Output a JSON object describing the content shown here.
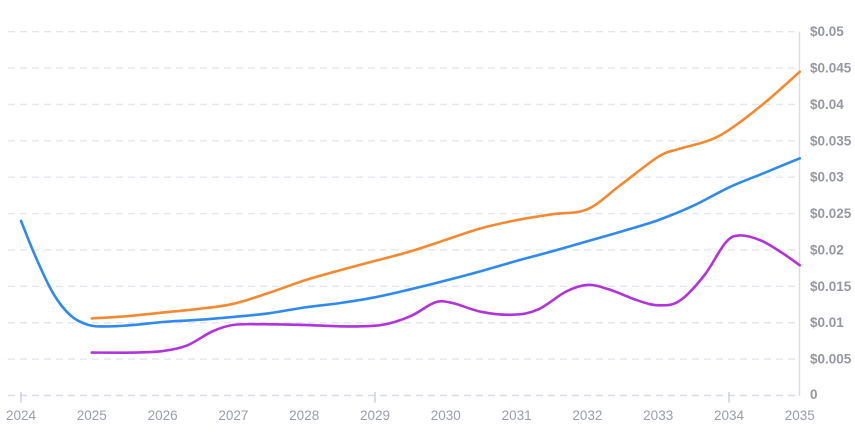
{
  "chart_data": {
    "type": "line",
    "title": "",
    "xlabel": "",
    "ylabel": "",
    "legend": "none",
    "grid": "horizontal-dashed",
    "xlim": [
      2024,
      2035
    ],
    "ylim": [
      0,
      0.05
    ],
    "x_tick_labels": [
      "2024",
      "2025",
      "2026",
      "2027",
      "2028",
      "2029",
      "2030",
      "2031",
      "2032",
      "2033",
      "2034",
      "2035"
    ],
    "x_tick_marks": [
      2024,
      2029,
      2034
    ],
    "y_ticks": [
      {
        "value": 0.05,
        "label": "$0.05"
      },
      {
        "value": 0.045,
        "label": "$0.045"
      },
      {
        "value": 0.04,
        "label": "$0.04"
      },
      {
        "value": 0.035,
        "label": "$0.035"
      },
      {
        "value": 0.03,
        "label": "$0.03"
      },
      {
        "value": 0.025,
        "label": "$0.025"
      },
      {
        "value": 0.02,
        "label": "$0.02"
      },
      {
        "value": 0.015,
        "label": "$0.015"
      },
      {
        "value": 0.01,
        "label": "$0.01"
      },
      {
        "value": 0.005,
        "label": "$0.005"
      },
      {
        "value": 0,
        "label": "0"
      }
    ],
    "series": [
      {
        "id": "blue",
        "color": "#2f8af0",
        "points": [
          [
            2024.0,
            0.024
          ],
          [
            2024.2,
            0.0192
          ],
          [
            2024.45,
            0.0141
          ],
          [
            2024.7,
            0.011
          ],
          [
            2024.95,
            0.0097
          ],
          [
            2025.2,
            0.0095
          ],
          [
            2025.6,
            0.0097
          ],
          [
            2026.0,
            0.0101
          ],
          [
            2026.5,
            0.0104
          ],
          [
            2027.0,
            0.0108
          ],
          [
            2027.5,
            0.0113
          ],
          [
            2028.0,
            0.0121
          ],
          [
            2028.5,
            0.0127
          ],
          [
            2029.0,
            0.0135
          ],
          [
            2029.5,
            0.0146
          ],
          [
            2030.0,
            0.0158
          ],
          [
            2030.5,
            0.0171
          ],
          [
            2031.0,
            0.0185
          ],
          [
            2031.5,
            0.0198
          ],
          [
            2032.0,
            0.0212
          ],
          [
            2032.5,
            0.0226
          ],
          [
            2033.0,
            0.0241
          ],
          [
            2033.5,
            0.0261
          ],
          [
            2034.0,
            0.0286
          ],
          [
            2034.5,
            0.0306
          ],
          [
            2035.0,
            0.0326
          ]
        ]
      },
      {
        "id": "orange",
        "color": "#f6892f",
        "points": [
          [
            2025.0,
            0.0106
          ],
          [
            2025.5,
            0.0109
          ],
          [
            2026.0,
            0.0114
          ],
          [
            2026.5,
            0.0119
          ],
          [
            2027.0,
            0.0126
          ],
          [
            2027.5,
            0.0141
          ],
          [
            2028.0,
            0.0158
          ],
          [
            2028.5,
            0.0172
          ],
          [
            2029.0,
            0.0185
          ],
          [
            2029.5,
            0.0198
          ],
          [
            2030.0,
            0.0214
          ],
          [
            2030.5,
            0.023
          ],
          [
            2031.0,
            0.0241
          ],
          [
            2031.5,
            0.0249
          ],
          [
            2032.0,
            0.0256
          ],
          [
            2032.45,
            0.0288
          ],
          [
            2033.0,
            0.0328
          ],
          [
            2033.3,
            0.0339
          ],
          [
            2033.7,
            0.035
          ],
          [
            2034.0,
            0.0365
          ],
          [
            2034.5,
            0.0402
          ],
          [
            2035.0,
            0.0445
          ]
        ]
      },
      {
        "id": "purple",
        "color": "#b133db",
        "points": [
          [
            2025.0,
            0.0059
          ],
          [
            2025.6,
            0.0059
          ],
          [
            2026.0,
            0.0061
          ],
          [
            2026.35,
            0.0069
          ],
          [
            2026.7,
            0.0088
          ],
          [
            2027.0,
            0.0097
          ],
          [
            2027.4,
            0.0098
          ],
          [
            2028.0,
            0.0097
          ],
          [
            2028.6,
            0.0095
          ],
          [
            2029.1,
            0.0097
          ],
          [
            2029.5,
            0.0109
          ],
          [
            2029.85,
            0.0128
          ],
          [
            2030.1,
            0.0127
          ],
          [
            2030.5,
            0.0115
          ],
          [
            2030.95,
            0.0111
          ],
          [
            2031.3,
            0.0118
          ],
          [
            2031.7,
            0.0143
          ],
          [
            2032.0,
            0.0152
          ],
          [
            2032.3,
            0.0146
          ],
          [
            2032.7,
            0.0131
          ],
          [
            2033.0,
            0.0124
          ],
          [
            2033.3,
            0.013
          ],
          [
            2033.65,
            0.0165
          ],
          [
            2033.95,
            0.021
          ],
          [
            2034.15,
            0.022
          ],
          [
            2034.45,
            0.0213
          ],
          [
            2034.75,
            0.0196
          ],
          [
            2035.0,
            0.0179
          ]
        ]
      }
    ]
  },
  "colors": {
    "background": "#ffffff",
    "gridline": "#e5e7ef",
    "zero_line": "#dadde6",
    "axis_line": "#d8dce6",
    "tick": "#c9cdd7",
    "x_label": "#9a9ea8",
    "y_label": "#95989f"
  }
}
